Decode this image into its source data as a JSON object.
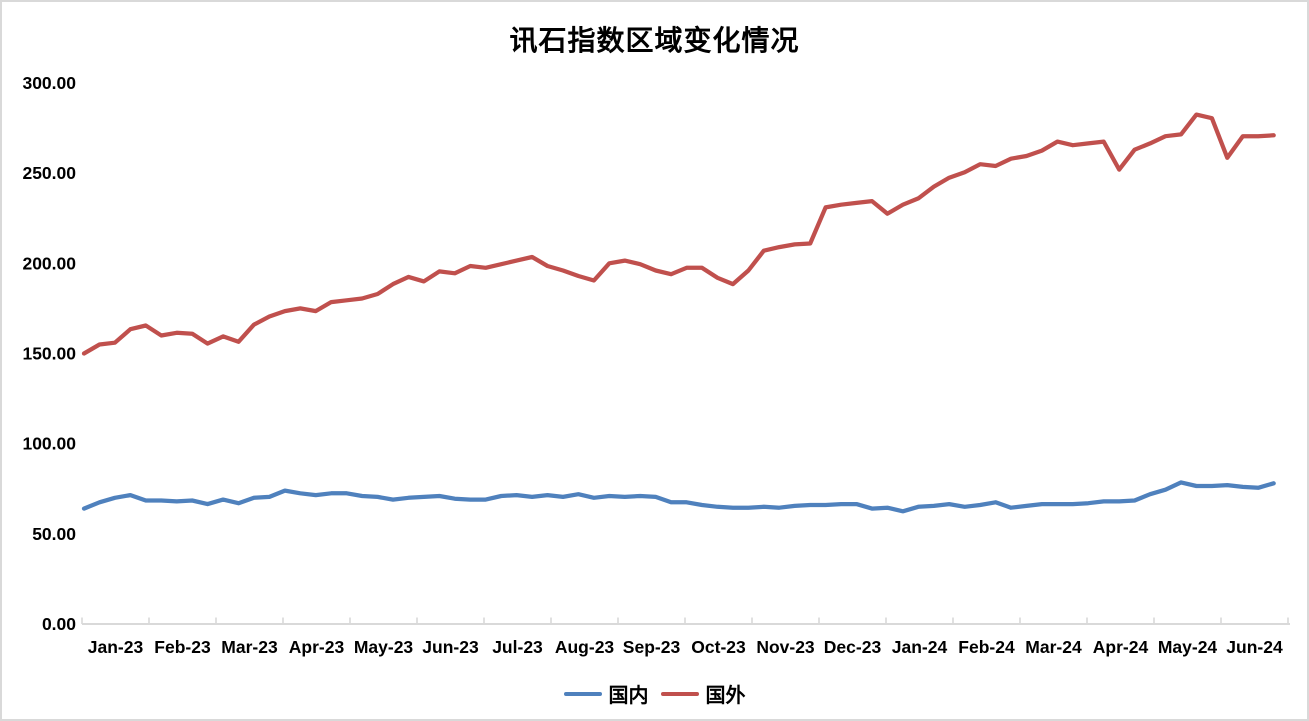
{
  "title": "讯石指数区域变化情况",
  "axis": {
    "color": "#d9d9d9",
    "label_color": "#000000"
  },
  "chart_data": {
    "type": "line",
    "title": "讯石指数区域变化情况",
    "x_description": "weekly data points spanning Jan-2023 to Jun-2024",
    "x_tick_labels": [
      "Jan-23",
      "Feb-23",
      "Mar-23",
      "Apr-23",
      "May-23",
      "Jun-23",
      "Jul-23",
      "Aug-23",
      "Sep-23",
      "Oct-23",
      "Nov-23",
      "Dec-23",
      "Jan-24",
      "Feb-24",
      "Mar-24",
      "Apr-24",
      "May-24",
      "Jun-24"
    ],
    "y_tick_labels": [
      "0.00",
      "50.00",
      "100.00",
      "150.00",
      "200.00",
      "250.00",
      "300.00"
    ],
    "ylim": [
      0,
      300
    ],
    "grid": false,
    "legend_position": "bottom",
    "series": [
      {
        "name": "国内",
        "color": "#4F81BD",
        "values": [
          64,
          67.5,
          70,
          71.5,
          68.5,
          68.5,
          68,
          68.5,
          66.5,
          69,
          67,
          70,
          70.5,
          74,
          72.5,
          71.5,
          72.5,
          72.5,
          71,
          70.5,
          69,
          70,
          70.5,
          71,
          69.5,
          69,
          69,
          71,
          71.5,
          70.5,
          71.5,
          70.5,
          72,
          70,
          71,
          70.5,
          71,
          70.5,
          67.5,
          67.5,
          66,
          65,
          64.5,
          64.5,
          65,
          64.5,
          65.5,
          66,
          66,
          66.5,
          66.5,
          64,
          64.5,
          62.5,
          65,
          65.5,
          66.5,
          65,
          66,
          67.5,
          64.5,
          65.5,
          66.5,
          66.5,
          66.5,
          67,
          68,
          68,
          68.5,
          72,
          74.5,
          78.5,
          76.5,
          76.5,
          77,
          76,
          75.5,
          78
        ]
      },
      {
        "name": "国外",
        "color": "#C0504D",
        "values": [
          150,
          155,
          156,
          163.5,
          165.5,
          160,
          161.5,
          161,
          155.5,
          159.5,
          156.5,
          166,
          170.5,
          173.5,
          175,
          173.5,
          178.5,
          179.5,
          180.5,
          183,
          188.5,
          192.5,
          190,
          195.5,
          194.5,
          198.5,
          197.5,
          199.5,
          201.5,
          203.5,
          198.5,
          196,
          193,
          190.5,
          200,
          201.5,
          199.5,
          196,
          194,
          197.5,
          197.5,
          192,
          188.5,
          196,
          207,
          209,
          210.5,
          211,
          231,
          232.5,
          233.5,
          234.5,
          227.5,
          232.5,
          236,
          242.5,
          247.5,
          250.5,
          255,
          254,
          258,
          259.5,
          262.5,
          267.5,
          265.5,
          266.5,
          267.5,
          252,
          263,
          266.5,
          270.5,
          271.5,
          282.5,
          280.5,
          258.5,
          270.5,
          270.5,
          271
        ]
      }
    ]
  }
}
